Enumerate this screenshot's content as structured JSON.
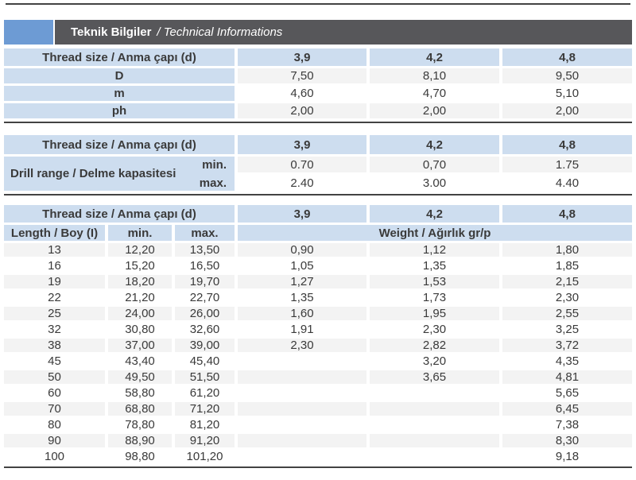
{
  "colors": {
    "header_blue": "#cdddef",
    "title_bar_gray": "#57575a",
    "brand_blue": "#6d9bd4",
    "stripe_gray": "#f3f3f3",
    "rule_dark": "#434343"
  },
  "title": {
    "bold": "Teknik Bilgiler",
    "italic": "/ Technical Informations"
  },
  "thread_header_label": "Thread size / Anma çapı (d)",
  "thread_sizes": [
    "3,9",
    "4,2",
    "4,8"
  ],
  "table1": {
    "rows": [
      {
        "label": "D",
        "values": [
          "7,50",
          "8,10",
          "9,50"
        ]
      },
      {
        "label": "m",
        "values": [
          "4,60",
          "4,70",
          "5,10"
        ]
      },
      {
        "label": "ph",
        "values": [
          "2,00",
          "2,00",
          "2,00"
        ]
      }
    ]
  },
  "table2": {
    "label": "Drill range / Delme kapasitesi",
    "min_label": "min.",
    "max_label": "max.",
    "min_values": [
      "0.70",
      "0,70",
      "1.75"
    ],
    "max_values": [
      "2.40",
      "3.00",
      "4.40"
    ]
  },
  "table3": {
    "length_label": "Length / Boy (I)",
    "min_label": "min.",
    "max_label": "max.",
    "weight_label": "Weight / Ağırlık gr/p",
    "rows": [
      {
        "length": "13",
        "min": "12,20",
        "max": "13,50",
        "weights": [
          "0,90",
          "1,12",
          "1,80"
        ]
      },
      {
        "length": "16",
        "min": "15,20",
        "max": "16,50",
        "weights": [
          "1,05",
          "1,35",
          "1,85"
        ]
      },
      {
        "length": "19",
        "min": "18,20",
        "max": "19,70",
        "weights": [
          "1,27",
          "1,53",
          "2,15"
        ]
      },
      {
        "length": "22",
        "min": "21,20",
        "max": "22,70",
        "weights": [
          "1,35",
          "1,73",
          "2,30"
        ]
      },
      {
        "length": "25",
        "min": "24,00",
        "max": "26,00",
        "weights": [
          "1,60",
          "1,95",
          "2,55"
        ]
      },
      {
        "length": "32",
        "min": "30,80",
        "max": "32,60",
        "weights": [
          "1,91",
          "2,30",
          "3,25"
        ]
      },
      {
        "length": "38",
        "min": "37,00",
        "max": "39,00",
        "weights": [
          "2,30",
          "2,82",
          "3,72"
        ]
      },
      {
        "length": "45",
        "min": "43,40",
        "max": "45,40",
        "weights": [
          "",
          "3,20",
          "4,35"
        ]
      },
      {
        "length": "50",
        "min": "49,50",
        "max": "51,50",
        "weights": [
          "",
          "3,65",
          "4,81"
        ]
      },
      {
        "length": "60",
        "min": "58,80",
        "max": "61,20",
        "weights": [
          "",
          "",
          "5,65"
        ]
      },
      {
        "length": "70",
        "min": "68,80",
        "max": "71,20",
        "weights": [
          "",
          "",
          "6,45"
        ]
      },
      {
        "length": "80",
        "min": "78,80",
        "max": "81,20",
        "weights": [
          "",
          "",
          "7,38"
        ]
      },
      {
        "length": "90",
        "min": "88,90",
        "max": "91,20",
        "weights": [
          "",
          "",
          "8,30"
        ]
      },
      {
        "length": "100",
        "min": "98,80",
        "max": "101,20",
        "weights": [
          "",
          "",
          "9,18"
        ]
      }
    ]
  }
}
